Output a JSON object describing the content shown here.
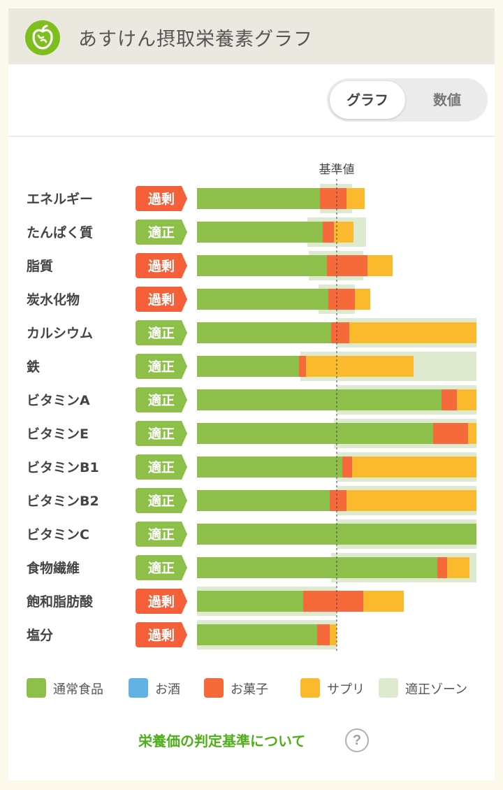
{
  "header": {
    "title": "あすけん摂取栄養素グラフ",
    "logo_icon": "apple-icon",
    "bg_color": "#ebe8e0",
    "logo_color": "#7fbf1d"
  },
  "toggle": {
    "options": [
      "グラフ",
      "数値"
    ],
    "selected": "グラフ"
  },
  "chart_data": {
    "type": "bar",
    "orientation": "horizontal",
    "stacked": true,
    "reference_label": "基準値",
    "unit": "percent of reference value",
    "xlim": [
      0,
      200
    ],
    "grid": false,
    "legend_placement": "bottom",
    "status_labels": {
      "over": "過剰",
      "ok": "適正"
    },
    "status_colors": {
      "over": "#f5603a",
      "ok": "#8ebf4b"
    },
    "categories": [
      "エネルギー",
      "たんぱく質",
      "脂質",
      "炭水化物",
      "カルシウム",
      "鉄",
      "ビタミンA",
      "ビタミンE",
      "ビタミンB1",
      "ビタミンB2",
      "ビタミンC",
      "食物繊維",
      "飽和脂肪酸",
      "塩分"
    ],
    "status": [
      "over",
      "ok",
      "over",
      "over",
      "ok",
      "ok",
      "ok",
      "ok",
      "ok",
      "ok",
      "ok",
      "ok",
      "over",
      "over"
    ],
    "series": [
      {
        "name": "通常食品",
        "color": "#8ebf4b",
        "values": [
          88,
          90,
          93,
          94,
          96,
          73,
          175,
          169,
          104,
          95,
          200,
          172,
          76,
          86
        ]
      },
      {
        "name": "お酒",
        "color": "#62b2e4",
        "values": [
          0,
          0,
          0,
          0,
          0,
          0,
          0,
          0,
          0,
          0,
          0,
          0,
          0,
          0
        ]
      },
      {
        "name": "お菓子",
        "color": "#f5693a",
        "values": [
          19,
          8,
          29,
          19,
          13,
          5,
          11,
          25,
          7,
          12,
          0,
          7,
          43,
          9
        ]
      },
      {
        "name": "サプリ",
        "color": "#fbba2e",
        "values": [
          13,
          14,
          18,
          11,
          91,
          77,
          14,
          6,
          89,
          93,
          0,
          16,
          29,
          5
        ]
      }
    ],
    "appropriate_zone": {
      "name": "適正ゾーン",
      "color": "#ddead0",
      "ranges": [
        [
          88,
          111
        ],
        [
          79,
          121
        ],
        [
          80,
          119
        ],
        [
          87,
          113
        ],
        [
          100,
          200
        ],
        [
          74,
          200
        ],
        [
          100,
          200
        ],
        [
          98,
          200
        ],
        [
          100,
          200
        ],
        [
          100,
          200
        ],
        [
          100,
          200
        ],
        [
          96,
          200
        ],
        [
          0,
          100
        ],
        [
          0,
          100
        ]
      ]
    }
  },
  "legend": [
    {
      "label": "通常食品",
      "color": "#8ebf4b"
    },
    {
      "label": "お酒",
      "color": "#62b2e4"
    },
    {
      "label": "お菓子",
      "color": "#f5693a"
    },
    {
      "label": "サプリ",
      "color": "#fbba2e"
    },
    {
      "label": "適正ゾーン",
      "color": "#ddead0"
    }
  ],
  "footer": {
    "criteria_link": "栄養価の判定基準について",
    "help_icon": "question-icon",
    "help_glyph": "?"
  }
}
